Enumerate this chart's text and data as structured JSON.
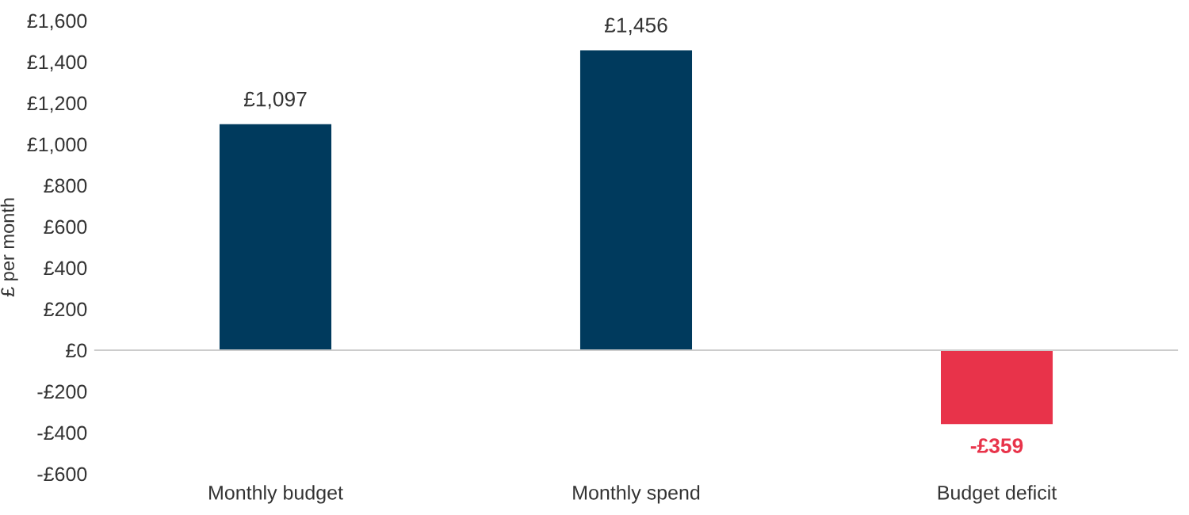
{
  "chart_data": {
    "type": "bar",
    "ylabel": "£ per month",
    "categories": [
      "Monthly budget",
      "Monthly spend",
      "Budget deficit"
    ],
    "values": [
      1097,
      1456,
      -359
    ],
    "colors": [
      "#003a5d",
      "#003a5d",
      "#e8334a"
    ],
    "value_labels": [
      "£1,097",
      "£1,456",
      "-£359"
    ],
    "ylim": [
      -600,
      1600
    ],
    "yticks": [
      {
        "value": -600,
        "label": "-£600"
      },
      {
        "value": -400,
        "label": "-£400"
      },
      {
        "value": -200,
        "label": "-£200"
      },
      {
        "value": 0,
        "label": "£0"
      },
      {
        "value": 200,
        "label": "£200"
      },
      {
        "value": 400,
        "label": "£400"
      },
      {
        "value": 600,
        "label": "£600"
      },
      {
        "value": 800,
        "label": "£800"
      },
      {
        "value": 1000,
        "label": "£1,000"
      },
      {
        "value": 1200,
        "label": "£1,200"
      },
      {
        "value": 1400,
        "label": "£1,400"
      },
      {
        "value": 1600,
        "label": "£1,600"
      }
    ],
    "legend": false
  }
}
